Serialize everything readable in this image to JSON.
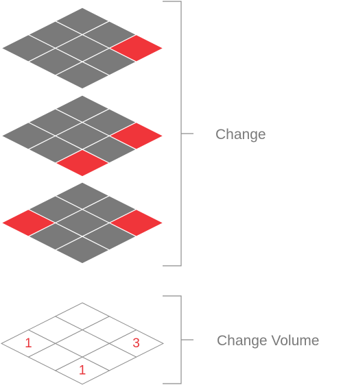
{
  "grid_size": 3,
  "colors": {
    "cell_default": "#7a7a7a",
    "cell_highlight": "#f0353a",
    "grid_line": "#ffffff",
    "outline": "#8c8c8c",
    "label": "#7a7a7a",
    "number": "#e8343a"
  },
  "change_layers": [
    {
      "name": "layer-1",
      "highlighted_cells": [
        [
          0,
          2
        ]
      ]
    },
    {
      "name": "layer-2",
      "highlighted_cells": [
        [
          0,
          2
        ],
        [
          2,
          2
        ]
      ]
    },
    {
      "name": "layer-3",
      "highlighted_cells": [
        [
          0,
          2
        ],
        [
          2,
          0
        ]
      ]
    }
  ],
  "volume_grid": {
    "cells": [
      {
        "row": 0,
        "col": 2,
        "value": "3"
      },
      {
        "row": 2,
        "col": 0,
        "value": "1"
      },
      {
        "row": 2,
        "col": 2,
        "value": "1"
      }
    ]
  },
  "labels": {
    "change": "Change",
    "change_volume": "Change Volume"
  }
}
